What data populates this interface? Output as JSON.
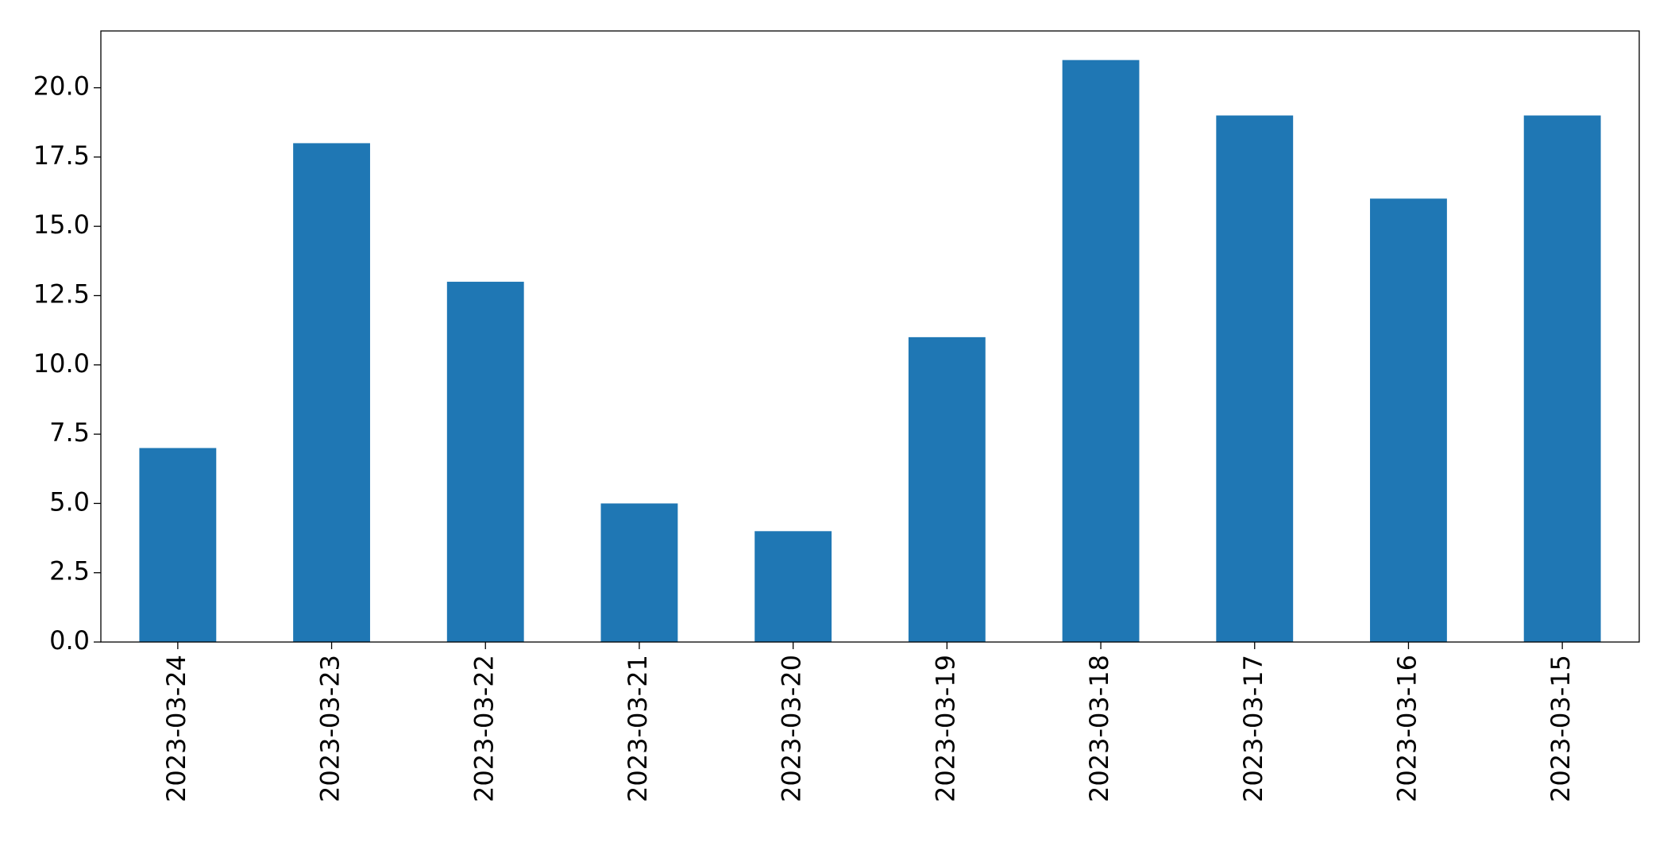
{
  "chart_data": {
    "type": "bar",
    "categories": [
      "2023-03-24",
      "2023-03-23",
      "2023-03-22",
      "2023-03-21",
      "2023-03-20",
      "2023-03-19",
      "2023-03-18",
      "2023-03-17",
      "2023-03-16",
      "2023-03-15"
    ],
    "values": [
      7,
      18,
      13,
      5,
      4,
      11,
      21,
      19,
      16,
      19
    ],
    "color": "#1f77b4",
    "ylim": [
      0,
      22.05
    ],
    "yticks": [
      {
        "value": 0,
        "label": "0.0"
      },
      2.5,
      {
        "value": 5,
        "label": "5.0"
      },
      7.5,
      {
        "value": 10,
        "label": "10.0"
      },
      12.5,
      {
        "value": 15,
        "label": "15.0"
      },
      17.5,
      {
        "value": 20,
        "label": "20.0"
      }
    ],
    "grid": false
  }
}
